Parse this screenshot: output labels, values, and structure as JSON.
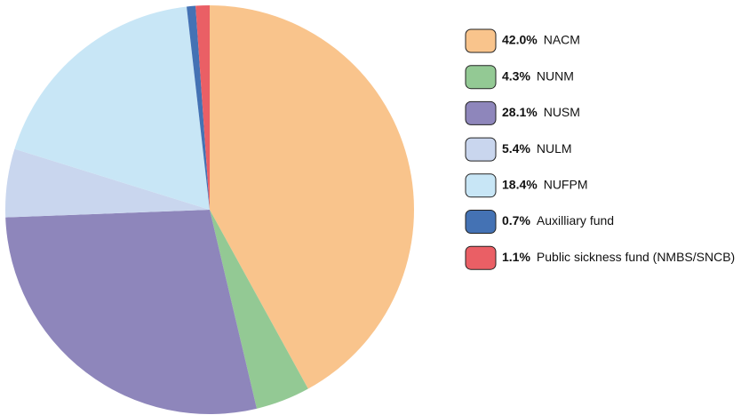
{
  "chart_data": {
    "type": "pie",
    "categories": [
      "NACM",
      "NUNM",
      "NUSM",
      "NULM",
      "NUFPM",
      "Auxilliary fund",
      "Public sickness fund (NMBS/SNCB)"
    ],
    "values": [
      42.0,
      4.3,
      28.1,
      5.4,
      18.4,
      0.7,
      1.1
    ],
    "value_labels": [
      "42.0%",
      "4.3%",
      "28.1%",
      "5.4%",
      "18.4%",
      "0.7%",
      "1.1%"
    ],
    "colors": [
      "#f9c48c",
      "#93c994",
      "#8e86bb",
      "#c9d6ee",
      "#c8e6f6",
      "#4472b4",
      "#ea5f65"
    ],
    "legend": "right"
  }
}
